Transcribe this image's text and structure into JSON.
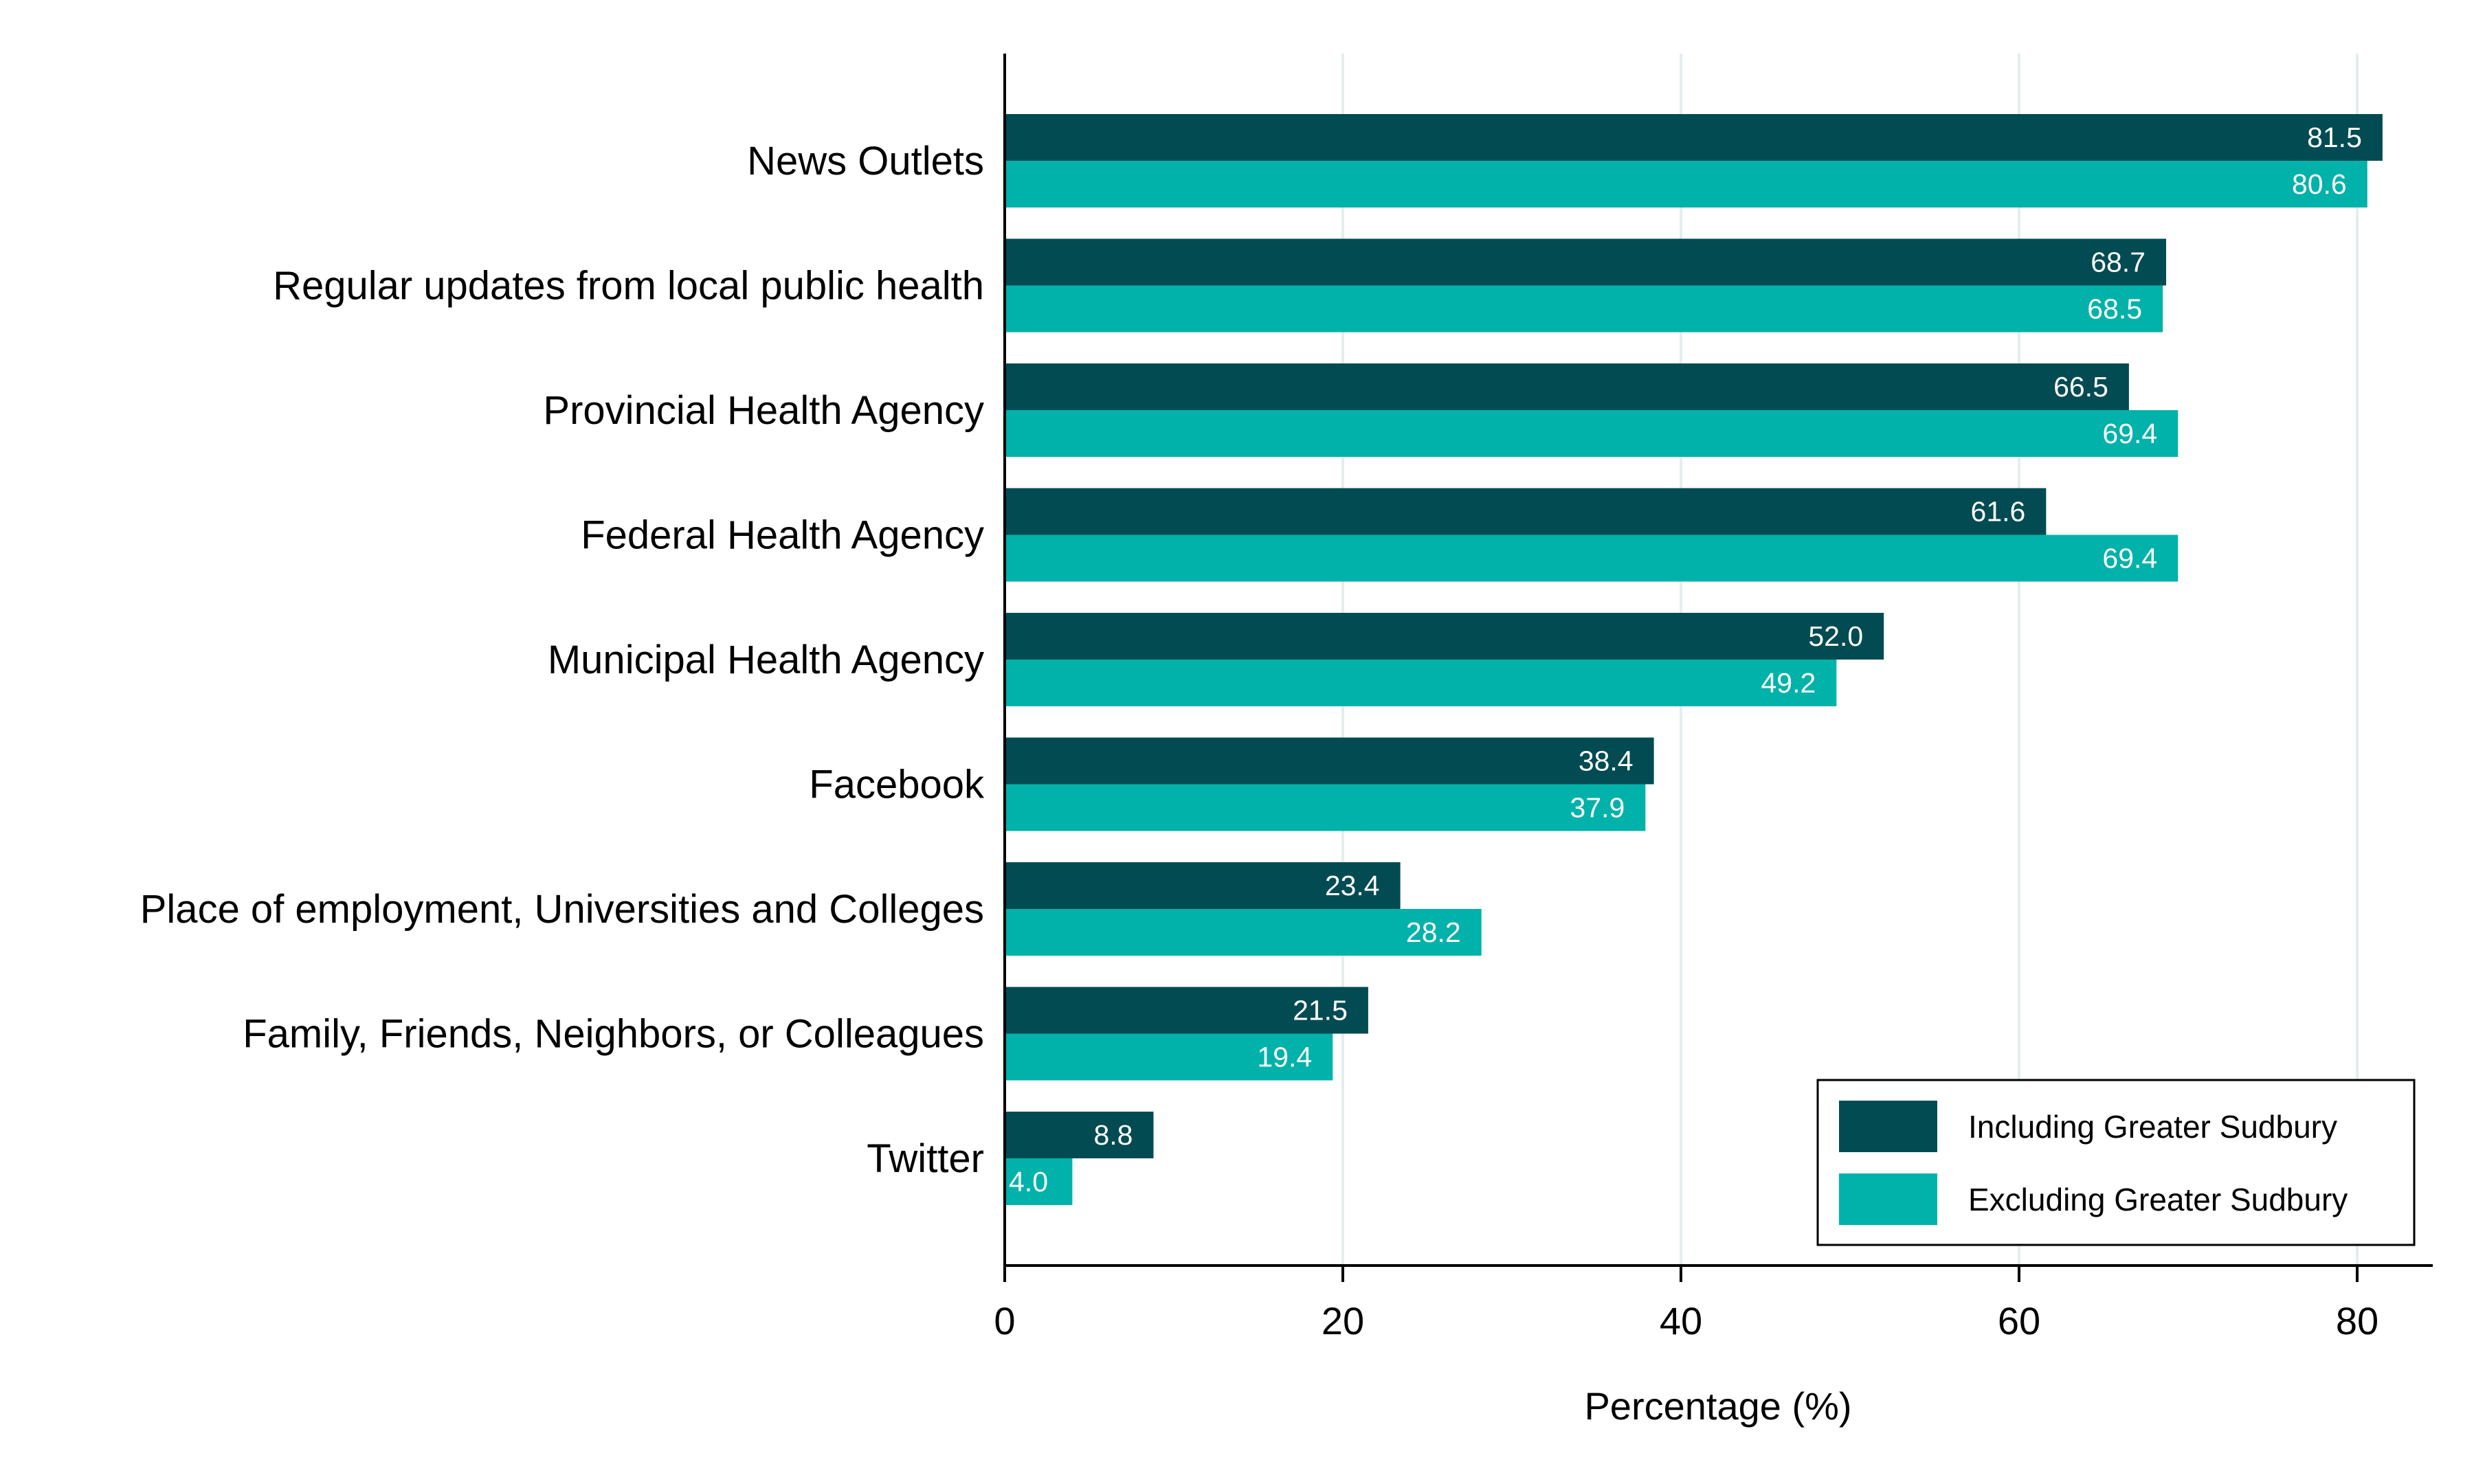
{
  "chart_data": {
    "type": "bar",
    "orientation": "horizontal",
    "categories": [
      "News Outlets",
      "Regular updates from local public health",
      "Provincial Health Agency",
      "Federal Health Agency",
      "Municipal Health Agency",
      "Facebook",
      "Place of employment, Universities and Colleges",
      "Family, Friends, Neighbors, or Colleagues",
      "Twitter"
    ],
    "series": [
      {
        "name": "Including Greater Sudbury",
        "color": "#024b52",
        "values": [
          81.5,
          68.7,
          66.5,
          61.6,
          52.0,
          38.4,
          23.4,
          21.5,
          8.8
        ],
        "labels": [
          "81.5",
          "68.7",
          "66.5",
          "61.6",
          "52.0",
          "38.4",
          "23.4",
          "21.5",
          "8.8"
        ]
      },
      {
        "name": "Excluding Greater Sudbury",
        "color": "#00b2a9",
        "values": [
          80.6,
          68.5,
          69.4,
          69.4,
          49.2,
          37.9,
          28.2,
          19.4,
          4.0
        ],
        "labels": [
          "80.6",
          "68.5",
          "69.4",
          "69.4",
          "49.2",
          "37.9",
          "28.2",
          "19.4",
          "4.0"
        ]
      }
    ],
    "xlabel": "Percentage (%)",
    "xlim": [
      0,
      84
    ],
    "xticks": [
      0,
      20,
      40,
      60,
      80
    ],
    "xtick_labels": [
      "0",
      "20",
      "40",
      "60",
      "80"
    ],
    "grid": "vertical",
    "grid_color": "#e2efee",
    "legend_position": "bottom-right"
  }
}
